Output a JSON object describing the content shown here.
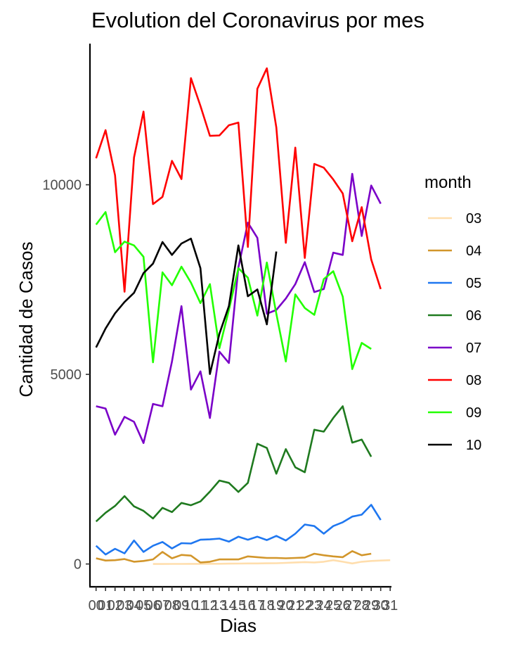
{
  "chart_data": {
    "type": "line",
    "title": "Evolution del Coronavirus por mes",
    "xlabel": "Dias",
    "ylabel": "Cantidad de Casos",
    "x": [
      "00",
      "01",
      "02",
      "03",
      "04",
      "05",
      "06",
      "07",
      "08",
      "09",
      "10",
      "11",
      "12",
      "13",
      "14",
      "15",
      "16",
      "17",
      "18",
      "19",
      "20",
      "21",
      "22",
      "23",
      "24",
      "25",
      "26",
      "27",
      "28",
      "29",
      "30",
      "31"
    ],
    "x_tick_labels": [
      "00",
      "01",
      "02",
      "03",
      "04",
      "05",
      "06",
      "07",
      "08",
      "09",
      "10",
      "11",
      "12",
      "13",
      "14",
      "15",
      "16",
      "17",
      "18",
      "19",
      "20",
      "21",
      "22",
      "23",
      "24",
      "25",
      "26",
      "27",
      "28",
      "29",
      "30",
      "31"
    ],
    "ylim": [
      -700,
      13800
    ],
    "y_ticks": [
      0,
      5000,
      10000
    ],
    "y_tick_labels": [
      "0",
      "5000",
      "10000"
    ],
    "grid": false,
    "legend": {
      "title": "month",
      "placement": "right"
    },
    "series": [
      {
        "name": "03",
        "color": "#ffdead",
        "values": [
          null,
          null,
          null,
          null,
          null,
          null,
          0,
          0,
          1,
          2,
          3,
          3,
          5,
          6,
          10,
          12,
          15,
          15,
          18,
          20,
          30,
          40,
          50,
          40,
          60,
          100,
          60,
          15,
          60,
          80,
          90,
          100
        ]
      },
      {
        "name": "04",
        "color": "#d2962b",
        "values": [
          150,
          90,
          100,
          130,
          60,
          80,
          120,
          320,
          150,
          240,
          220,
          40,
          60,
          120,
          120,
          120,
          200,
          180,
          160,
          160,
          150,
          160,
          170,
          270,
          230,
          200,
          180,
          340,
          230,
          270,
          null,
          null
        ]
      },
      {
        "name": "05",
        "color": "#1f77f0",
        "values": [
          480,
          250,
          400,
          280,
          620,
          320,
          480,
          580,
          410,
          550,
          540,
          640,
          650,
          670,
          590,
          720,
          640,
          720,
          630,
          740,
          620,
          800,
          1040,
          1000,
          800,
          1000,
          1100,
          1250,
          1300,
          1560,
          1160,
          null
        ]
      },
      {
        "name": "06",
        "color": "#1f7a1f",
        "values": [
          1120,
          1350,
          1530,
          1790,
          1520,
          1400,
          1200,
          1480,
          1370,
          1610,
          1550,
          1650,
          1910,
          2200,
          2140,
          1900,
          2140,
          3170,
          3060,
          2380,
          3030,
          2550,
          2420,
          3540,
          3490,
          3850,
          4160,
          3200,
          3280,
          2830,
          null,
          null
        ]
      },
      {
        "name": "07",
        "color": "#7a00c8",
        "values": [
          4160,
          4100,
          3410,
          3880,
          3750,
          3190,
          4220,
          4160,
          5340,
          6800,
          4600,
          5080,
          3850,
          5600,
          5300,
          7820,
          9000,
          8600,
          6600,
          6700,
          7000,
          7380,
          7960,
          7170,
          7250,
          8210,
          8150,
          10290,
          8650,
          9980,
          9500,
          null
        ]
      },
      {
        "name": "08",
        "color": "#ff0000",
        "values": [
          10700,
          11440,
          10250,
          7180,
          10720,
          11930,
          9490,
          9680,
          10630,
          10150,
          12810,
          12080,
          11290,
          11300,
          11570,
          11640,
          8360,
          12530,
          13070,
          11510,
          8470,
          10980,
          8070,
          10550,
          10450,
          10140,
          9770,
          8510,
          9410,
          8030,
          7250,
          null
        ]
      },
      {
        "name": "09",
        "color": "#22ff00",
        "values": [
          8950,
          9280,
          8220,
          8500,
          8400,
          8100,
          5320,
          7690,
          7350,
          7840,
          7420,
          6880,
          7380,
          5690,
          6700,
          7800,
          7550,
          6550,
          7950,
          6600,
          5340,
          7110,
          6750,
          6570,
          7510,
          7720,
          7050,
          5140,
          5830,
          5670,
          null,
          null
        ]
      },
      {
        "name": "10",
        "color": "#000000",
        "values": [
          5710,
          6210,
          6610,
          6910,
          7150,
          7670,
          7920,
          8490,
          8150,
          8450,
          8580,
          7800,
          5010,
          6070,
          6800,
          8400,
          7060,
          7240,
          6320,
          8240,
          null,
          null,
          null,
          null,
          null,
          null,
          null,
          null,
          null,
          null,
          null,
          null
        ]
      }
    ]
  }
}
